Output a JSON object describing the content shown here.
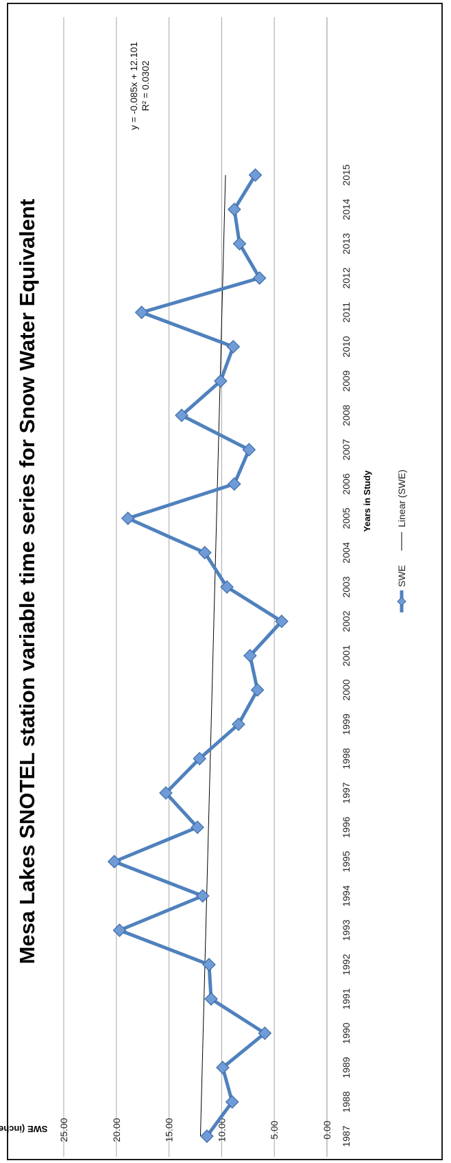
{
  "chart_data": {
    "type": "line",
    "title": "Mesa Lakes SNOTEL station variable time series for Snow Water Equivalent",
    "xlabel": "Years in Study",
    "ylabel": "SWE (inches)",
    "ylim": [
      0,
      25
    ],
    "y_ticks": [
      "0.00",
      "5.00",
      "10.00",
      "15.00",
      "20.00",
      "25.00"
    ],
    "categories": [
      "1987",
      "1988",
      "1989",
      "1990",
      "1991",
      "1992",
      "1993",
      "1994",
      "1995",
      "1996",
      "1997",
      "1998",
      "1999",
      "2000",
      "2001",
      "2002",
      "2003",
      "2004",
      "2005",
      "2006",
      "2007",
      "2008",
      "2009",
      "2010",
      "2011",
      "2012",
      "2013",
      "2014",
      "2015"
    ],
    "series": [
      {
        "name": "SWE",
        "color": "#4F81BD",
        "values": [
          11.4,
          9.0,
          9.9,
          5.9,
          11.0,
          11.2,
          19.7,
          11.8,
          20.2,
          12.3,
          15.3,
          12.1,
          8.4,
          6.6,
          7.3,
          4.3,
          9.5,
          11.6,
          18.9,
          8.8,
          7.4,
          13.8,
          10.1,
          8.9,
          17.6,
          6.4,
          8.3,
          8.8,
          6.8
        ]
      }
    ],
    "trendline": {
      "name": "Linear (SWE)",
      "slope": -0.085,
      "intercept": 12.101,
      "equation": "y = -0.085x + 12.101",
      "r2": "R² = 0.0302"
    },
    "legend": [
      "SWE",
      "Linear (SWE)"
    ],
    "legend_position": "bottom",
    "grid": true,
    "orientation": "rotated-90"
  }
}
